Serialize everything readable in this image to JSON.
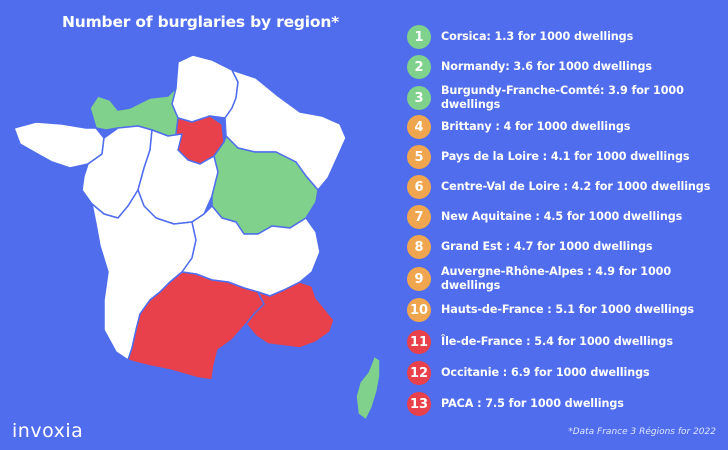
{
  "title": "Number of burglaries by region*",
  "colors": {
    "background": "#4f6ded",
    "low": "#7fd18b",
    "medium": "#f0a64e",
    "high": "#e8414b",
    "neutral": "#ffffff"
  },
  "legend": [
    {
      "num": "1",
      "text": "Corsica: 1.3 for 1000 dwellings",
      "level": "green"
    },
    {
      "num": "2",
      "text": "Normandy: 3.6 for 1000 dwellings",
      "level": "green"
    },
    {
      "num": "3",
      "text": "Burgundy-Franche-Comté: 3.9 for 1000 dwellings",
      "level": "green"
    },
    {
      "num": "4",
      "text": "Brittany : 4 for 1000 dwellings",
      "level": "orange"
    },
    {
      "num": "5",
      "text": "Pays de la Loire : 4.1 for 1000 dwellings",
      "level": "orange"
    },
    {
      "num": "6",
      "text": "Centre-Val de Loire : 4.2 for 1000 dwellings",
      "level": "orange"
    },
    {
      "num": "7",
      "text": "New Aquitaine : 4.5 for 1000 dwellings",
      "level": "orange"
    },
    {
      "num": "8",
      "text": "Grand Est : 4.7 for 1000 dwellings",
      "level": "orange"
    },
    {
      "num": "9",
      "text": "Auvergne-Rhône-Alpes : 4.9 for 1000 dwellings",
      "level": "orange"
    },
    {
      "num": "10",
      "text": "Hauts-de-France : 5.1 for 1000 dwellings",
      "level": "orange"
    },
    {
      "num": "11",
      "text": "Île-de-France : 5.4 for 1000 dwellings",
      "level": "red"
    },
    {
      "num": "12",
      "text": "Occitanie : 6.9 for 1000 dwellings",
      "level": "red"
    },
    {
      "num": "13",
      "text": "PACA : 7.5 for 1000 dwellings",
      "level": "red"
    }
  ],
  "logo": "invoxia",
  "source": "*Data France 3 Régions for 2022"
}
